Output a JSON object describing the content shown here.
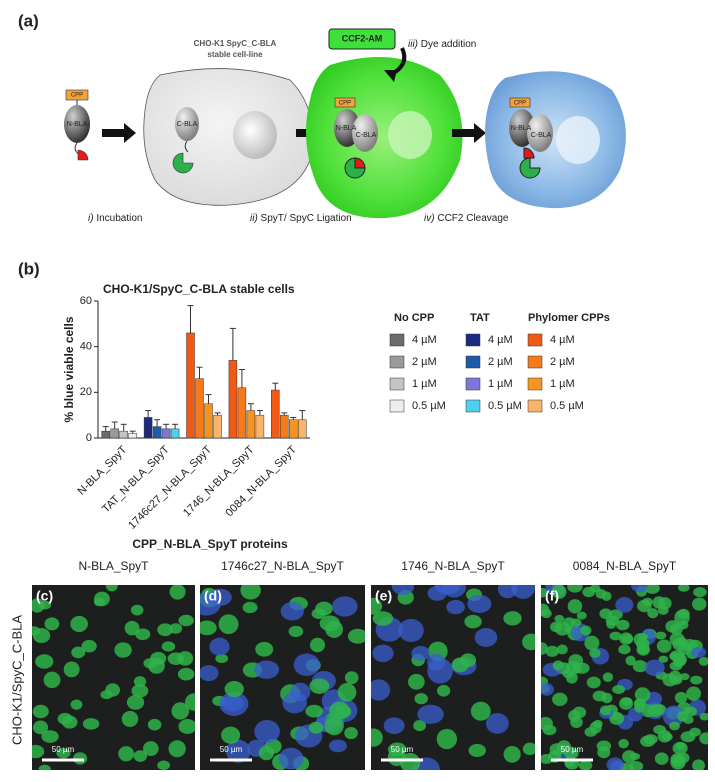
{
  "diagram": {
    "label": "(a)",
    "cell_line": [
      "CHO-K1 SpyC_C-BLA",
      "stable cell-line"
    ],
    "dye": "CCF2-AM",
    "dye_step": {
      "numeral": "iii)",
      "text": " Dye addition"
    },
    "cpp": "CPP",
    "n_bla": "N-BLA",
    "c_bla": "C-BLA",
    "steps": [
      {
        "numeral": "i)",
        "text": " Incubation"
      },
      {
        "numeral": "ii)",
        "text": " SpyT/ SpyC Ligation"
      },
      {
        "numeral": "iv)",
        "text": " CCF2 Cleavage"
      }
    ]
  },
  "chart_label": "(b)",
  "chart_data": {
    "type": "bar",
    "title": "CHO-K1/SpyC_C-BLA stable cells",
    "y_label": "% blue viable cells",
    "x_label": "CPP_N-BLA_SpyT proteins",
    "categories": [
      "N-BLA_SpyT",
      "TAT_N-BLA_SpyT",
      "1746c27_N-BLA_SpyT",
      "1746_N-BLA_SpyT",
      "0084_N-BLA_SpyT"
    ],
    "ylim": [
      0,
      60
    ],
    "yticks": [
      0,
      20,
      40,
      60
    ],
    "series_groups": [
      {
        "name": "No CPP",
        "series": [
          {
            "name": "4 µM",
            "color": "#6b6b6b",
            "values": [
              3,
              null,
              null,
              null,
              null
            ],
            "errors": [
              2,
              null,
              null,
              null,
              null
            ]
          },
          {
            "name": "2 µM",
            "color": "#9a9a9a",
            "values": [
              4,
              null,
              null,
              null,
              null
            ],
            "errors": [
              3,
              null,
              null,
              null,
              null
            ]
          },
          {
            "name": "1 µM",
            "color": "#c4c4c4",
            "values": [
              3,
              null,
              null,
              null,
              null
            ],
            "errors": [
              3,
              null,
              null,
              null,
              null
            ]
          },
          {
            "name": "0.5 µM",
            "color": "#ededed",
            "values": [
              2,
              null,
              null,
              null,
              null
            ],
            "errors": [
              1,
              null,
              null,
              null,
              null
            ]
          }
        ]
      },
      {
        "name": "TAT",
        "series": [
          {
            "name": "4 µM",
            "color": "#1b2a80",
            "values": [
              null,
              9,
              null,
              null,
              null
            ],
            "errors": [
              null,
              3,
              null,
              null,
              null
            ]
          },
          {
            "name": "2 µM",
            "color": "#1f5aa8",
            "values": [
              null,
              5,
              null,
              null,
              null
            ],
            "errors": [
              null,
              3,
              null,
              null,
              null
            ]
          },
          {
            "name": "1 µM",
            "color": "#7a78d8",
            "values": [
              null,
              4,
              null,
              null,
              null
            ],
            "errors": [
              null,
              2,
              null,
              null,
              null
            ]
          },
          {
            "name": "0.5 µM",
            "color": "#4fd0f0",
            "values": [
              null,
              4,
              null,
              null,
              null
            ],
            "errors": [
              null,
              2,
              null,
              null,
              null
            ]
          }
        ]
      },
      {
        "name": "Phylomer CPPs",
        "series": [
          {
            "name": "4 µM",
            "color": "#f05a14",
            "values": [
              null,
              null,
              46,
              34,
              21
            ],
            "errors": [
              null,
              null,
              12,
              14,
              3
            ]
          },
          {
            "name": "2 µM",
            "color": "#f47a1a",
            "values": [
              null,
              null,
              26,
              22,
              10
            ],
            "errors": [
              null,
              null,
              5,
              8,
              1
            ]
          },
          {
            "name": "1 µM",
            "color": "#f79420",
            "values": [
              null,
              null,
              15,
              12,
              8
            ],
            "errors": [
              null,
              null,
              4,
              3,
              1
            ]
          },
          {
            "name": "0.5 µM",
            "color": "#f9b36a",
            "values": [
              null,
              null,
              10,
              10,
              8
            ],
            "errors": [
              null,
              null,
              1,
              2,
              4
            ]
          }
        ]
      }
    ]
  },
  "micrographs": {
    "row_label": "CHO-K1/SpyC_C-BLA",
    "panels": [
      {
        "label": "(c)",
        "title": "N-BLA_SpyT",
        "scale": "50 µm"
      },
      {
        "label": "(d)",
        "title": "1746c27_N-BLA_SpyT",
        "scale": "50 µm"
      },
      {
        "label": "(e)",
        "title": "1746_N-BLA_SpyT",
        "scale": "50 µm"
      },
      {
        "label": "(f)",
        "title": "0084_N-BLA_SpyT",
        "scale": "50 µm"
      }
    ]
  }
}
